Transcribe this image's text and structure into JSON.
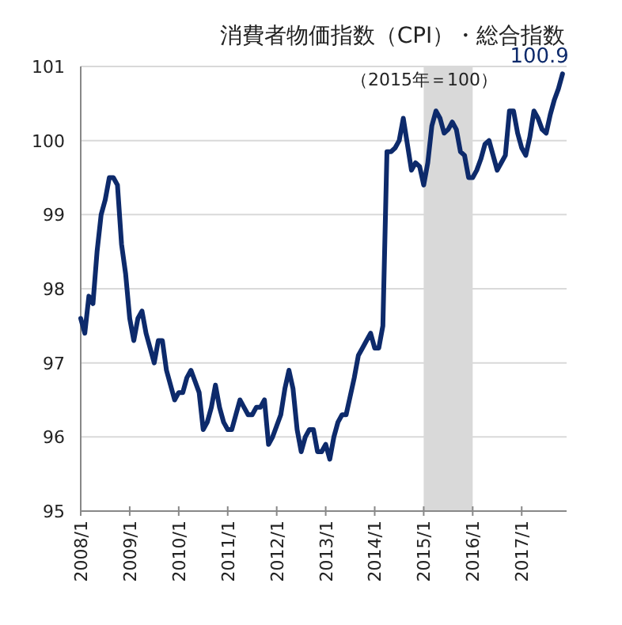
{
  "chart_data": {
    "type": "line",
    "title": "消費者物価指数（CPI）・総合指数",
    "subtitle": "（2015年＝100）",
    "x": [
      "2008-01",
      "2008-02",
      "2008-03",
      "2008-04",
      "2008-05",
      "2008-06",
      "2008-07",
      "2008-08",
      "2008-09",
      "2008-10",
      "2008-11",
      "2008-12",
      "2009-01",
      "2009-02",
      "2009-03",
      "2009-04",
      "2009-05",
      "2009-06",
      "2009-07",
      "2009-08",
      "2009-09",
      "2009-10",
      "2009-11",
      "2009-12",
      "2010-01",
      "2010-02",
      "2010-03",
      "2010-04",
      "2010-05",
      "2010-06",
      "2010-07",
      "2010-08",
      "2010-09",
      "2010-10",
      "2010-11",
      "2010-12",
      "2011-01",
      "2011-02",
      "2011-03",
      "2011-04",
      "2011-05",
      "2011-06",
      "2011-07",
      "2011-08",
      "2011-09",
      "2011-10",
      "2011-11",
      "2011-12",
      "2012-01",
      "2012-02",
      "2012-03",
      "2012-04",
      "2012-05",
      "2012-06",
      "2012-07",
      "2012-08",
      "2012-09",
      "2012-10",
      "2012-11",
      "2012-12",
      "2013-01",
      "2013-02",
      "2013-03",
      "2013-04",
      "2013-05",
      "2013-06",
      "2013-07",
      "2013-08",
      "2013-09",
      "2013-10",
      "2013-11",
      "2013-12",
      "2014-01",
      "2014-02",
      "2014-03",
      "2014-04",
      "2014-05",
      "2014-06",
      "2014-07",
      "2014-08",
      "2014-09",
      "2014-10",
      "2014-11",
      "2014-12",
      "2015-01",
      "2015-02",
      "2015-03",
      "2015-04",
      "2015-05",
      "2015-06",
      "2015-07",
      "2015-08",
      "2015-09",
      "2015-10",
      "2015-11",
      "2015-12",
      "2016-01",
      "2016-02",
      "2016-03",
      "2016-04",
      "2016-05",
      "2016-06",
      "2016-07",
      "2016-08",
      "2016-09",
      "2016-10",
      "2016-11",
      "2016-12",
      "2017-01",
      "2017-02",
      "2017-03",
      "2017-04",
      "2017-05",
      "2017-06",
      "2017-07",
      "2017-08",
      "2017-09",
      "2017-10",
      "2017-11"
    ],
    "series": [
      {
        "color": "#0d2a6b",
        "values": [
          97.6,
          97.4,
          97.9,
          97.8,
          98.5,
          99.0,
          99.2,
          99.5,
          99.5,
          99.4,
          98.6,
          98.2,
          97.6,
          97.3,
          97.6,
          97.7,
          97.4,
          97.2,
          97.0,
          97.3,
          97.3,
          96.9,
          96.7,
          96.5,
          96.6,
          96.6,
          96.8,
          96.9,
          96.75,
          96.6,
          96.1,
          96.2,
          96.4,
          96.7,
          96.4,
          96.2,
          96.1,
          96.1,
          96.3,
          96.5,
          96.4,
          96.3,
          96.3,
          96.4,
          96.4,
          96.5,
          95.9,
          96.0,
          96.15,
          96.3,
          96.65,
          96.9,
          96.65,
          96.1,
          95.8,
          96.0,
          96.1,
          96.1,
          95.8,
          95.8,
          95.9,
          95.7,
          96.0,
          96.2,
          96.3,
          96.3,
          96.55,
          96.8,
          97.1,
          97.2,
          97.3,
          97.4,
          97.2,
          97.2,
          97.5,
          99.85,
          99.85,
          99.9,
          100.0,
          100.3,
          99.95,
          99.6,
          99.7,
          99.65,
          99.4,
          99.7,
          100.2,
          100.4,
          100.3,
          100.1,
          100.15,
          100.25,
          100.15,
          99.85,
          99.8,
          99.5,
          99.5,
          99.6,
          99.75,
          99.95,
          100.0,
          99.8,
          99.6,
          99.7,
          99.8,
          100.4,
          100.4,
          100.1,
          99.9,
          99.8,
          100.05,
          100.4,
          100.3,
          100.15,
          100.1,
          100.35,
          100.55,
          100.7,
          100.9
        ],
        "value_labels": [
          null,
          null,
          null,
          null,
          null,
          null,
          null,
          null,
          null,
          null,
          null,
          null,
          null,
          null,
          null,
          null,
          null,
          null,
          null,
          null,
          null,
          null,
          null,
          null,
          null,
          null,
          null,
          null,
          null,
          null,
          null,
          null,
          null,
          null,
          null,
          null,
          null,
          null,
          null,
          null,
          null,
          null,
          null,
          null,
          null,
          null,
          null,
          null,
          null,
          null,
          null,
          null,
          null,
          null,
          null,
          null,
          null,
          null,
          null,
          null,
          null,
          null,
          null,
          null,
          null,
          null,
          null,
          null,
          null,
          null,
          null,
          null,
          null,
          null,
          null,
          null,
          null,
          null,
          null,
          null,
          null,
          null,
          null,
          null,
          null,
          null,
          null,
          null,
          null,
          null,
          null,
          null,
          null,
          null,
          null,
          null,
          null,
          null,
          null,
          null,
          null,
          null,
          null,
          null,
          null,
          null,
          null,
          null,
          null,
          null,
          null,
          null,
          null,
          null,
          null,
          null,
          null,
          null,
          "100.9"
        ]
      }
    ],
    "xlim": [
      "2008-01",
      "2017-12"
    ],
    "xticks": [
      {
        "value": "2008-01",
        "label": "2008/1"
      },
      {
        "value": "2009-01",
        "label": "2009/1"
      },
      {
        "value": "2010-01",
        "label": "2010/1"
      },
      {
        "value": "2011-01",
        "label": "2011/1"
      },
      {
        "value": "2012-01",
        "label": "2012/1"
      },
      {
        "value": "2013-01",
        "label": "2013/1"
      },
      {
        "value": "2014-01",
        "label": "2014/1"
      },
      {
        "value": "2015-01",
        "label": "2015/1"
      },
      {
        "value": "2016-01",
        "label": "2016/1"
      },
      {
        "value": "2017-01",
        "label": "2017/1"
      }
    ],
    "ylim": [
      95,
      101
    ],
    "yticks": [
      95,
      96,
      97,
      98,
      99,
      100,
      101
    ],
    "grid": "y",
    "bands": [
      {
        "axis": "x",
        "from": "2015-01",
        "to": "2016-01",
        "color": "#d9d9d9"
      }
    ]
  }
}
